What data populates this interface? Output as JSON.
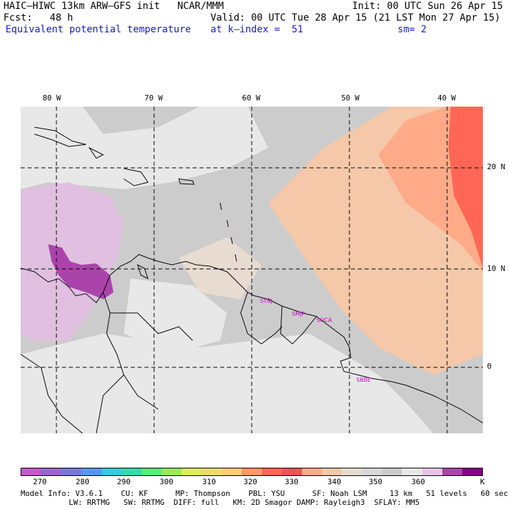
{
  "header": {
    "model_line": "HAIC–HIWC 13km ARW–GFS init   NCAR/MMM",
    "init_line": "Init: 00 UTC Sun 26 Apr 15",
    "fcst_line": "Fcst:   48 h",
    "valid_line": "Valid: 00 UTC Tue 28 Apr 15 (21 LST Mon 27 Apr 15)",
    "field_name": "Equivalent potential temperature",
    "level_line": "at k–index =  51",
    "smooth_line": "sm= 2"
  },
  "axes": {
    "lon_labels": [
      "80 W",
      "70 W",
      "60 W",
      "50 W",
      "40 W"
    ],
    "lat_labels": [
      "20 N",
      "10 N",
      "0"
    ]
  },
  "stations": [
    "SYBJ",
    "SMJP",
    "SOCA",
    "SBBE"
  ],
  "colorbar": {
    "colors": [
      "#cc55cc",
      "#9966cc",
      "#7777dd",
      "#5599ee",
      "#33ccdd",
      "#33ddaa",
      "#55ee77",
      "#99ee55",
      "#ddee55",
      "#eedd66",
      "#ffcc77",
      "#ff9966",
      "#ff6655",
      "#ee5555",
      "#ffaa88",
      "#f4c8a8",
      "#e8dcd0",
      "#d8d8d8",
      "#cccccc",
      "#e8e8e8",
      "#e8c4e8",
      "#aa44aa",
      "#880088"
    ],
    "tick_labels": [
      "270",
      "280",
      "290",
      "300",
      "310",
      "320",
      "330",
      "340",
      "350",
      "360"
    ],
    "unit": "K"
  },
  "footer": {
    "line1": "Model Info: V3.6.1    CU: KF      MP: Thompson    PBL: YSU      SF: Noah LSM     13 km   51 levels   60 sec",
    "line2": "LW: RRTMG   SW: RRTMG  DIFF: full   KM: 2D Smagor DAMP: Rayleigh3  SFLAY: MM5"
  }
}
